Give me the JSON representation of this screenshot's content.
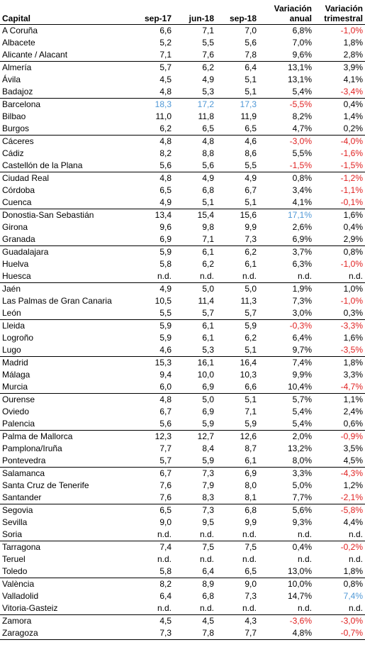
{
  "header": {
    "capital": "Capital",
    "sep17": "sep-17",
    "jun18": "jun-18",
    "sep18": "sep-18",
    "var_anual": "Variación anual",
    "var_trimestral": "Variación trimestral"
  },
  "colors": {
    "negative": "#e02020",
    "highlight": "#4f98d6",
    "text": "#000000"
  },
  "rows": [
    {
      "city": "A Coruña",
      "sep17": "6,6",
      "jun18": "7,1",
      "sep18": "7,0",
      "anual": "6,8%",
      "trim": "-1,0%",
      "g": 1,
      "tn": 1
    },
    {
      "city": "Albacete",
      "sep17": "5,2",
      "jun18": "5,5",
      "sep18": "5,6",
      "anual": "7,0%",
      "trim": "1,8%"
    },
    {
      "city": "Alicante / Alacant",
      "sep17": "7,1",
      "jun18": "7,6",
      "sep18": "7,8",
      "anual": "9,6%",
      "trim": "2,8%"
    },
    {
      "city": "Almería",
      "sep17": "5,7",
      "jun18": "6,2",
      "sep18": "6,4",
      "anual": "13,1%",
      "trim": "3,9%",
      "g": 1
    },
    {
      "city": "Ávila",
      "sep17": "4,5",
      "jun18": "4,9",
      "sep18": "5,1",
      "anual": "13,1%",
      "trim": "4,1%"
    },
    {
      "city": "Badajoz",
      "sep17": "4,8",
      "jun18": "5,3",
      "sep18": "5,1",
      "anual": "5,4%",
      "trim": "-3,4%",
      "tn": 1
    },
    {
      "city": "Barcelona",
      "sep17": "18,3",
      "jun18": "17,2",
      "sep18": "17,3",
      "anual": "-5,5%",
      "trim": "0,4%",
      "g": 1,
      "vb": 1,
      "an": 1
    },
    {
      "city": "Bilbao",
      "sep17": "11,0",
      "jun18": "11,8",
      "sep18": "11,9",
      "anual": "8,2%",
      "trim": "1,4%"
    },
    {
      "city": "Burgos",
      "sep17": "6,2",
      "jun18": "6,5",
      "sep18": "6,5",
      "anual": "4,7%",
      "trim": "0,2%"
    },
    {
      "city": "Cáceres",
      "sep17": "4,8",
      "jun18": "4,8",
      "sep18": "4,6",
      "anual": "-3,0%",
      "trim": "-4,0%",
      "g": 1,
      "an": 1,
      "tn": 1
    },
    {
      "city": "Cádiz",
      "sep17": "8,2",
      "jun18": "8,8",
      "sep18": "8,6",
      "anual": "5,5%",
      "trim": "-1,6%",
      "tn": 1
    },
    {
      "city": "Castellón de la Plana",
      "sep17": "5,6",
      "jun18": "5,6",
      "sep18": "5,5",
      "anual": "-1,5%",
      "trim": "-1,5%",
      "an": 1,
      "tn": 1
    },
    {
      "city": "Ciudad Real",
      "sep17": "4,8",
      "jun18": "4,9",
      "sep18": "4,9",
      "anual": "0,8%",
      "trim": "-1,2%",
      "g": 1,
      "tn": 1
    },
    {
      "city": "Córdoba",
      "sep17": "6,5",
      "jun18": "6,8",
      "sep18": "6,7",
      "anual": "3,4%",
      "trim": "-1,1%",
      "tn": 1
    },
    {
      "city": "Cuenca",
      "sep17": "4,9",
      "jun18": "5,1",
      "sep18": "5,1",
      "anual": "4,1%",
      "trim": "-0,1%",
      "tn": 1
    },
    {
      "city": "Donostia-San Sebastián",
      "sep17": "13,4",
      "jun18": "15,4",
      "sep18": "15,6",
      "anual": "17,1%",
      "trim": "1,6%",
      "g": 1,
      "ab": 1
    },
    {
      "city": "Girona",
      "sep17": "9,6",
      "jun18": "9,8",
      "sep18": "9,9",
      "anual": "2,6%",
      "trim": "0,4%"
    },
    {
      "city": "Granada",
      "sep17": "6,9",
      "jun18": "7,1",
      "sep18": "7,3",
      "anual": "6,9%",
      "trim": "2,9%"
    },
    {
      "city": "Guadalajara",
      "sep17": "5,9",
      "jun18": "6,1",
      "sep18": "6,2",
      "anual": "3,7%",
      "trim": "0,8%",
      "g": 1
    },
    {
      "city": "Huelva",
      "sep17": "5,8",
      "jun18": "6,2",
      "sep18": "6,1",
      "anual": "6,3%",
      "trim": "-1,0%",
      "tn": 1
    },
    {
      "city": "Huesca",
      "sep17": "n.d.",
      "jun18": "n.d.",
      "sep18": "n.d.",
      "anual": "n.d.",
      "trim": "n.d."
    },
    {
      "city": "Jaén",
      "sep17": "4,9",
      "jun18": "5,0",
      "sep18": "5,0",
      "anual": "1,9%",
      "trim": "1,0%",
      "g": 1
    },
    {
      "city": "Las Palmas de Gran Canaria",
      "sep17": "10,5",
      "jun18": "11,4",
      "sep18": "11,3",
      "anual": "7,3%",
      "trim": "-1,0%",
      "tn": 1
    },
    {
      "city": "León",
      "sep17": "5,5",
      "jun18": "5,7",
      "sep18": "5,7",
      "anual": "3,0%",
      "trim": "0,3%"
    },
    {
      "city": "Lleida",
      "sep17": "5,9",
      "jun18": "6,1",
      "sep18": "5,9",
      "anual": "-0,3%",
      "trim": "-3,3%",
      "g": 1,
      "an": 1,
      "tn": 1
    },
    {
      "city": "Logroño",
      "sep17": "5,9",
      "jun18": "6,1",
      "sep18": "6,2",
      "anual": "6,4%",
      "trim": "1,6%"
    },
    {
      "city": "Lugo",
      "sep17": "4,6",
      "jun18": "5,3",
      "sep18": "5,1",
      "anual": "9,7%",
      "trim": "-3,5%",
      "tn": 1
    },
    {
      "city": "Madrid",
      "sep17": "15,3",
      "jun18": "16,1",
      "sep18": "16,4",
      "anual": "7,4%",
      "trim": "1,8%",
      "g": 1
    },
    {
      "city": "Málaga",
      "sep17": "9,4",
      "jun18": "10,0",
      "sep18": "10,3",
      "anual": "9,9%",
      "trim": "3,3%"
    },
    {
      "city": "Murcia",
      "sep17": "6,0",
      "jun18": "6,9",
      "sep18": "6,6",
      "anual": "10,4%",
      "trim": "-4,7%",
      "tn": 1
    },
    {
      "city": "Ourense",
      "sep17": "4,8",
      "jun18": "5,0",
      "sep18": "5,1",
      "anual": "5,7%",
      "trim": "1,1%",
      "g": 1
    },
    {
      "city": "Oviedo",
      "sep17": "6,7",
      "jun18": "6,9",
      "sep18": "7,1",
      "anual": "5,4%",
      "trim": "2,4%"
    },
    {
      "city": "Palencia",
      "sep17": "5,6",
      "jun18": "5,9",
      "sep18": "5,9",
      "anual": "5,4%",
      "trim": "0,6%"
    },
    {
      "city": "Palma de Mallorca",
      "sep17": "12,3",
      "jun18": "12,7",
      "sep18": "12,6",
      "anual": "2,0%",
      "trim": "-0,9%",
      "g": 1,
      "tn": 1
    },
    {
      "city": "Pamplona/Iruña",
      "sep17": "7,7",
      "jun18": "8,4",
      "sep18": "8,7",
      "anual": "13,2%",
      "trim": "3,5%"
    },
    {
      "city": "Pontevedra",
      "sep17": "5,7",
      "jun18": "5,9",
      "sep18": "6,1",
      "anual": "8,0%",
      "trim": "4,5%"
    },
    {
      "city": "Salamanca",
      "sep17": "6,7",
      "jun18": "7,3",
      "sep18": "6,9",
      "anual": "3,3%",
      "trim": "-4,3%",
      "g": 1,
      "tn": 1
    },
    {
      "city": "Santa Cruz de Tenerife",
      "sep17": "7,6",
      "jun18": "7,9",
      "sep18": "8,0",
      "anual": "5,0%",
      "trim": "1,2%"
    },
    {
      "city": "Santander",
      "sep17": "7,6",
      "jun18": "8,3",
      "sep18": "8,1",
      "anual": "7,7%",
      "trim": "-2,1%",
      "tn": 1
    },
    {
      "city": "Segovia",
      "sep17": "6,5",
      "jun18": "7,3",
      "sep18": "6,8",
      "anual": "5,6%",
      "trim": "-5,8%",
      "g": 1,
      "tn": 1
    },
    {
      "city": "Sevilla",
      "sep17": "9,0",
      "jun18": "9,5",
      "sep18": "9,9",
      "anual": "9,3%",
      "trim": "4,4%"
    },
    {
      "city": "Soria",
      "sep17": "n.d.",
      "jun18": "n.d.",
      "sep18": "n.d.",
      "anual": "n.d.",
      "trim": "n.d."
    },
    {
      "city": "Tarragona",
      "sep17": "7,4",
      "jun18": "7,5",
      "sep18": "7,5",
      "anual": "0,4%",
      "trim": "-0,2%",
      "g": 1,
      "tn": 1
    },
    {
      "city": "Teruel",
      "sep17": "n.d.",
      "jun18": "n.d.",
      "sep18": "n.d.",
      "anual": "n.d.",
      "trim": "n.d."
    },
    {
      "city": "Toledo",
      "sep17": "5,8",
      "jun18": "6,4",
      "sep18": "6,5",
      "anual": "13,0%",
      "trim": "1,8%"
    },
    {
      "city": "València",
      "sep17": "8,2",
      "jun18": "8,9",
      "sep18": "9,0",
      "anual": "10,0%",
      "trim": "0,8%",
      "g": 1
    },
    {
      "city": "Valladolid",
      "sep17": "6,4",
      "jun18": "6,8",
      "sep18": "7,3",
      "anual": "14,7%",
      "trim": "7,4%",
      "tb": 1
    },
    {
      "city": "Vitoria-Gasteiz",
      "sep17": "n.d.",
      "jun18": "n.d.",
      "sep18": "n.d.",
      "anual": "n.d.",
      "trim": "n.d."
    },
    {
      "city": "Zamora",
      "sep17": "4,5",
      "jun18": "4,5",
      "sep18": "4,3",
      "anual": "-3,6%",
      "trim": "-3,0%",
      "g": 1,
      "an": 1,
      "tn": 1
    },
    {
      "city": "Zaragoza",
      "sep17": "7,3",
      "jun18": "7,8",
      "sep18": "7,7",
      "anual": "4,8%",
      "trim": "-0,7%",
      "tn": 1
    }
  ]
}
